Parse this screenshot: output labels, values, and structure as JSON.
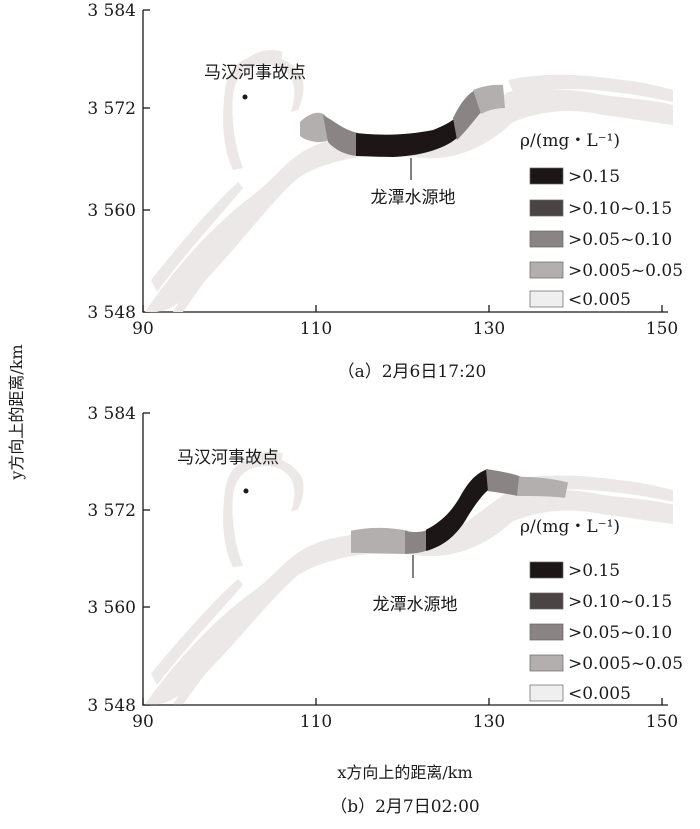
{
  "figure": {
    "y_label": "y方向上的距离/km",
    "x_label": "x方向上的距离/km"
  },
  "legend": {
    "title": "ρ/(mg・L⁻¹)",
    "items": [
      {
        "label": ">0.15",
        "color": "#1c1616"
      },
      {
        "label": ">0.10~0.15",
        "color": "#4a4444"
      },
      {
        "label": ">0.05~0.10",
        "color": "#8a8484"
      },
      {
        "label": ">0.005~0.05",
        "color": "#b4afaf"
      },
      {
        "label": "<0.005",
        "color": "#efefef"
      }
    ]
  },
  "panels": [
    {
      "caption": "（a）2月6日17:20",
      "accident_label": "马汉河事故点",
      "source_label": "龙潭水源地",
      "x_ticks": [
        "90",
        "110",
        "130",
        "150"
      ],
      "y_ticks": [
        "3 584",
        "3 572",
        "3 560",
        "3 548"
      ]
    },
    {
      "caption": "（b）2月7日02:00",
      "accident_label": "马汉河事故点",
      "source_label": "龙潭水源地",
      "x_ticks": [
        "90",
        "110",
        "130",
        "150"
      ],
      "y_ticks": [
        "3 584",
        "3 572",
        "3 560",
        "3 548"
      ]
    }
  ]
}
